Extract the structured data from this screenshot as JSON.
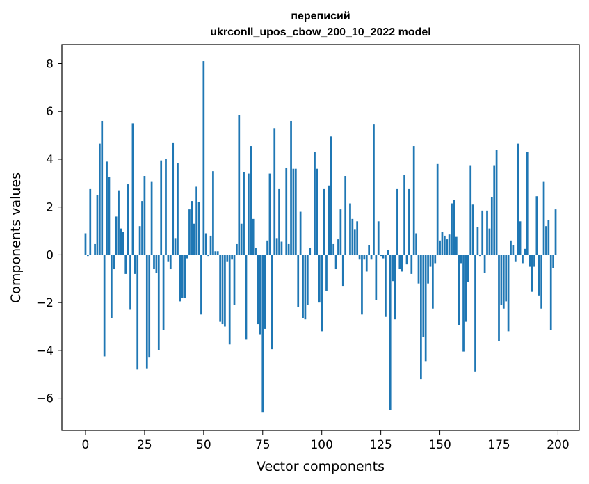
{
  "chart_data": {
    "type": "bar",
    "title_line1": "переписий",
    "title_line2": "ukrconll_upos_cbow_200_10_2022 model",
    "xlabel": "Vector components",
    "ylabel": "Components values",
    "xlim": [
      -10,
      209
    ],
    "ylim": [
      -7.35,
      8.8
    ],
    "xticks": [
      0,
      25,
      50,
      75,
      100,
      125,
      150,
      175,
      200
    ],
    "yticks": [
      -6,
      -4,
      -2,
      0,
      2,
      4,
      6,
      8
    ],
    "ytick_labels": [
      "−6",
      "−4",
      "−2",
      "0",
      "2",
      "4",
      "6",
      "8"
    ],
    "bar_color": "#1f77b4",
    "grid": false,
    "values": [
      0.9,
      -0.05,
      2.75,
      0.0,
      0.45,
      2.5,
      4.65,
      5.6,
      -4.25,
      3.9,
      3.25,
      -2.65,
      -0.6,
      1.6,
      2.7,
      1.1,
      0.95,
      -0.8,
      2.95,
      -2.3,
      5.5,
      -0.8,
      -4.8,
      1.2,
      2.25,
      3.3,
      -4.75,
      -4.3,
      3.05,
      -0.6,
      -0.75,
      -4.0,
      3.95,
      -3.15,
      4.0,
      -0.3,
      -0.6,
      4.7,
      0.7,
      3.85,
      -1.95,
      -1.8,
      -1.8,
      -0.15,
      1.9,
      2.25,
      1.3,
      2.85,
      2.2,
      -2.5,
      8.1,
      0.9,
      -0.05,
      0.8,
      3.5,
      0.15,
      0.15,
      -2.8,
      -2.9,
      -3.0,
      -0.3,
      -3.75,
      -0.2,
      -2.1,
      0.45,
      5.85,
      1.3,
      3.45,
      -3.55,
      3.4,
      4.55,
      1.5,
      0.3,
      -2.9,
      -3.35,
      -6.6,
      -3.1,
      0.6,
      3.4,
      -3.95,
      5.3,
      0.7,
      2.75,
      0.55,
      0.0,
      3.65,
      0.45,
      5.6,
      3.6,
      3.6,
      -2.2,
      1.8,
      -2.65,
      -2.7,
      -2.1,
      0.3,
      0.0,
      4.3,
      3.6,
      -2.0,
      -3.2,
      2.75,
      -1.5,
      2.9,
      4.95,
      0.45,
      -0.6,
      0.65,
      1.9,
      -1.3,
      3.3,
      0.0,
      2.15,
      1.5,
      1.05,
      1.4,
      -0.2,
      -2.5,
      -0.2,
      -0.7,
      0.4,
      -0.2,
      5.45,
      -1.9,
      1.4,
      -0.05,
      -0.15,
      -2.6,
      0.2,
      -6.5,
      -1.1,
      -2.7,
      2.75,
      -0.6,
      -0.7,
      3.35,
      -0.4,
      2.75,
      -0.8,
      4.55,
      0.9,
      -1.2,
      -5.2,
      -3.45,
      -4.45,
      -1.2,
      -0.5,
      -2.25,
      -0.35,
      3.8,
      0.6,
      0.95,
      0.8,
      0.65,
      0.85,
      2.15,
      2.3,
      0.75,
      -2.95,
      -0.35,
      -4.05,
      -2.8,
      -1.15,
      3.75,
      2.1,
      -4.9,
      1.15,
      -0.05,
      1.85,
      -0.75,
      1.85,
      1.1,
      2.4,
      3.75,
      4.4,
      -3.6,
      -2.1,
      -2.25,
      -1.95,
      -3.2,
      0.6,
      0.4,
      -0.3,
      4.65,
      1.4,
      -0.35,
      0.25,
      4.3,
      -0.5,
      -1.55,
      -0.5,
      2.45,
      -1.7,
      -2.25,
      3.05,
      1.2,
      1.45,
      -3.15,
      -0.55,
      1.9
    ]
  }
}
